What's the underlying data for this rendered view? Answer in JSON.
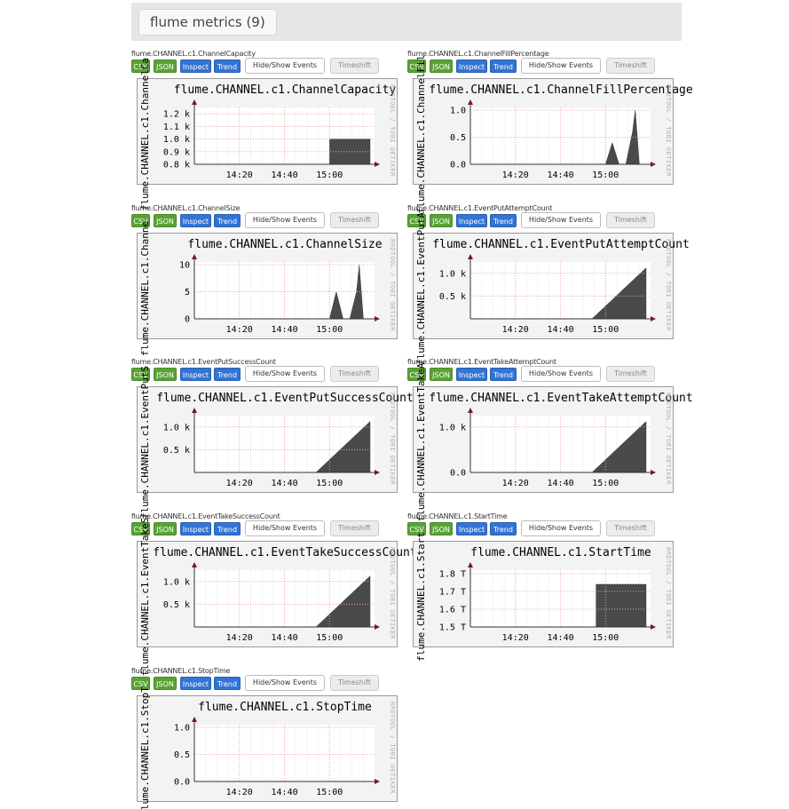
{
  "header": {
    "title": "flume metrics (9)"
  },
  "buttons": {
    "csv": "CSV",
    "json": "JSON",
    "inspect": "Inspect",
    "trend": "Trend",
    "hide_show": "Hide/Show Events",
    "timeshift": "Timeshift"
  },
  "watermark": "RRDTOOL / TOBI OETIKER",
  "panels": [
    {
      "name": "flume.CHANNEL.c1.ChannelCapacity",
      "chart_data": {
        "type": "area",
        "title": "flume.CHANNEL.c1.ChannelCapacity",
        "ylabel": "flume.CHANNEL.c1.ChannelCa",
        "xticks": [
          "14:20",
          "14:40",
          "15:00"
        ],
        "yticks": [
          "1.2 k",
          "1.1 k",
          "1.0 k",
          "0.9 k",
          "0.8 k"
        ],
        "ylim": [
          800,
          1250
        ],
        "series_x": [
          15.0,
          15.3
        ],
        "series_y": [
          1000,
          1000
        ]
      }
    },
    {
      "name": "flume.CHANNEL.c1.ChannelFillPercentage",
      "chart_data": {
        "type": "area",
        "title": "flume.CHANNEL.c1.ChannelFillPercentage",
        "ylabel": "flume.CHANNEL.c1.ChannelFil",
        "xticks": [
          "14:20",
          "14:40",
          "15:00"
        ],
        "yticks": [
          "1.0",
          "0.5",
          "0.0"
        ],
        "ylim": [
          0,
          1.05
        ],
        "series_x": [
          15.0,
          15.05,
          15.1,
          15.12,
          15.15,
          15.2,
          15.22,
          15.25
        ],
        "series_y": [
          0,
          0.4,
          0,
          0,
          0,
          0.6,
          1.0,
          0
        ]
      }
    },
    {
      "name": "flume.CHANNEL.c1.ChannelSize",
      "chart_data": {
        "type": "area",
        "title": "flume.CHANNEL.c1.ChannelSize",
        "ylabel": "flume.CHANNEL.c1.Channe",
        "xticks": [
          "14:20",
          "14:40",
          "15:00"
        ],
        "yticks": [
          "10",
          "5",
          "0"
        ],
        "ylim": [
          0,
          10.5
        ],
        "series_x": [
          15.0,
          15.05,
          15.1,
          15.15,
          15.2,
          15.22,
          15.25
        ],
        "series_y": [
          0,
          5,
          0,
          0,
          5,
          10,
          0
        ]
      }
    },
    {
      "name": "flume.CHANNEL.c1.EventPutAttemptCount",
      "chart_data": {
        "type": "area",
        "title": "flume.CHANNEL.c1.EventPutAttemptCount",
        "ylabel": "flume.CHANNEL.c1.EventPutA",
        "xticks": [
          "14:20",
          "14:40",
          "15:00"
        ],
        "yticks": [
          "1.0 k",
          "0.5 k"
        ],
        "ylim": [
          0,
          1250
        ],
        "series_x": [
          14.9,
          15.3
        ],
        "series_y": [
          0,
          1120
        ]
      }
    },
    {
      "name": "flume.CHANNEL.c1.EventPutSuccessCount",
      "chart_data": {
        "type": "area",
        "title": "flume.CHANNEL.c1.EventPutSuccessCount",
        "ylabel": "flume.CHANNEL.c1.EventPutS",
        "xticks": [
          "14:20",
          "14:40",
          "15:00"
        ],
        "yticks": [
          "1.0 k",
          "0.5 k"
        ],
        "ylim": [
          0,
          1250
        ],
        "series_x": [
          14.9,
          15.3
        ],
        "series_y": [
          0,
          1120
        ]
      }
    },
    {
      "name": "flume.CHANNEL.c1.EventTakeAttemptCount",
      "chart_data": {
        "type": "area",
        "title": "flume.CHANNEL.c1.EventTakeAttemptCount",
        "ylabel": "flume.CHANNEL.c1.EventTakeA",
        "xticks": [
          "14:20",
          "14:40",
          "15:00"
        ],
        "yticks": [
          "1.0 k",
          "0.0"
        ],
        "ylim": [
          0,
          1250
        ],
        "series_x": [
          14.9,
          15.3
        ],
        "series_y": [
          0,
          1120
        ]
      }
    },
    {
      "name": "flume.CHANNEL.c1.EventTakeSuccessCount",
      "chart_data": {
        "type": "area",
        "title": "flume.CHANNEL.c1.EventTakeSuccessCount",
        "ylabel": "flume.CHANNEL.c1.EventTakeS",
        "xticks": [
          "14:20",
          "14:40",
          "15:00"
        ],
        "yticks": [
          "1.0 k",
          "0.5 k"
        ],
        "ylim": [
          0,
          1250
        ],
        "series_x": [
          14.9,
          15.3
        ],
        "series_y": [
          0,
          1120
        ]
      }
    },
    {
      "name": "flume.CHANNEL.c1.StartTime",
      "chart_data": {
        "type": "area",
        "title": "flume.CHANNEL.c1.StartTime",
        "ylabel": "flume.CHANNEL.c1.Start",
        "xticks": [
          "14:20",
          "14:40",
          "15:00"
        ],
        "yticks": [
          "1.8 T",
          "1.7 T",
          "1.6 T",
          "1.5 T"
        ],
        "ylim": [
          1.5,
          1.82
        ],
        "series_x": [
          14.93,
          15.3
        ],
        "series_y": [
          1.74,
          1.74
        ]
      }
    },
    {
      "name": "flume.CHANNEL.c1.StopTime",
      "chart_data": {
        "type": "line",
        "title": "flume.CHANNEL.c1.StopTime",
        "ylabel": "flume.CHANNEL.c1.StopT",
        "xticks": [
          "14:20",
          "14:40",
          "15:00"
        ],
        "yticks": [
          "1.0",
          "0.5",
          "0.0"
        ],
        "ylim": [
          0,
          1.05
        ],
        "series_x": [],
        "series_y": []
      }
    }
  ]
}
